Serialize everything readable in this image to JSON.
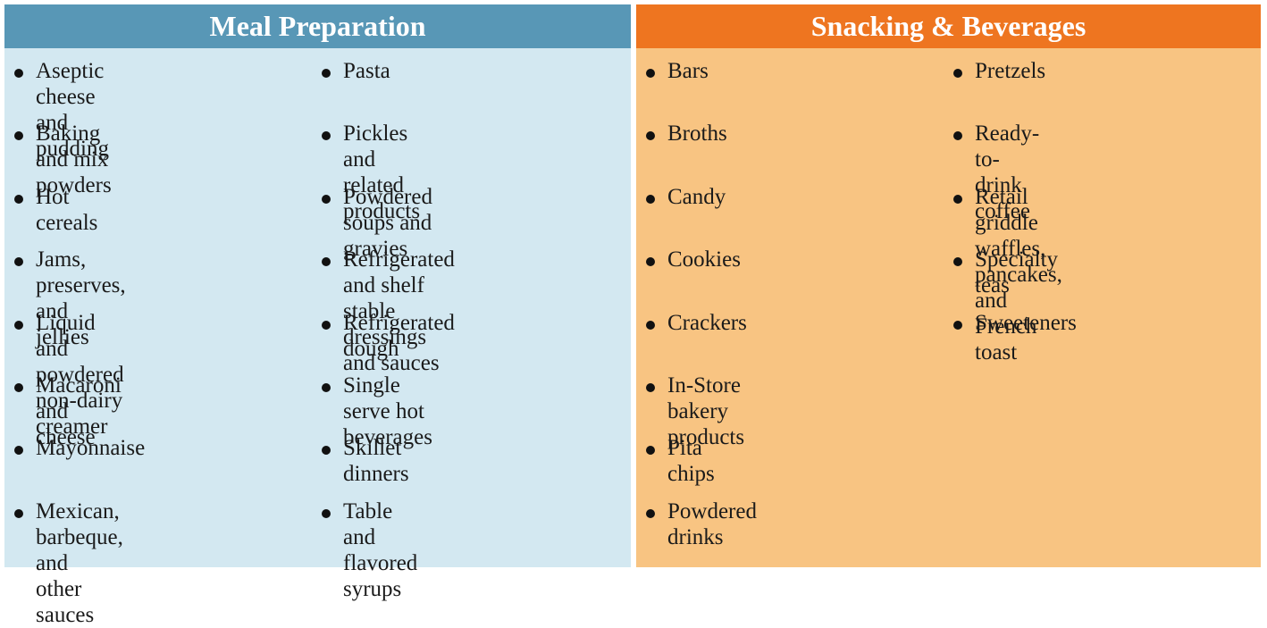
{
  "colors": {
    "meal_header": "#5897b6",
    "meal_body": "#d3e8f1",
    "snack_header": "#ee7520",
    "snack_body": "#f8c482"
  },
  "meal": {
    "title": "Meal Preparation",
    "col1": [
      "Aseptic cheese and\npudding",
      "Baking and mix powders",
      "Hot cereals",
      "Jams, preserves, and\njellies",
      "Liquid and powdered\nnon-dairy creamer",
      "Macaroni and cheese",
      "Mayonnaise",
      "Mexican, barbeque, and\nother sauces"
    ],
    "col2": [
      "Pasta",
      "Pickles and related\nproducts",
      "Powdered soups and\ngravies",
      "Refrigerated and shelf\nstable dressings and sauces",
      "Refrigerated dough",
      "Single serve hot beverages",
      "Skillet dinners",
      "Table and flavored syrups"
    ]
  },
  "snack": {
    "title": "Snacking & Beverages",
    "col1": [
      "Bars",
      "Broths",
      "Candy",
      "Cookies",
      "Crackers",
      "In-Store bakery products",
      "Pita chips",
      "Powdered drinks"
    ],
    "col2": [
      "Pretzels",
      "Ready-to-drink coffee",
      "Retail griddle waffles,\npancakes, and French toast",
      "Specialty teas",
      "Sweeteners"
    ]
  }
}
